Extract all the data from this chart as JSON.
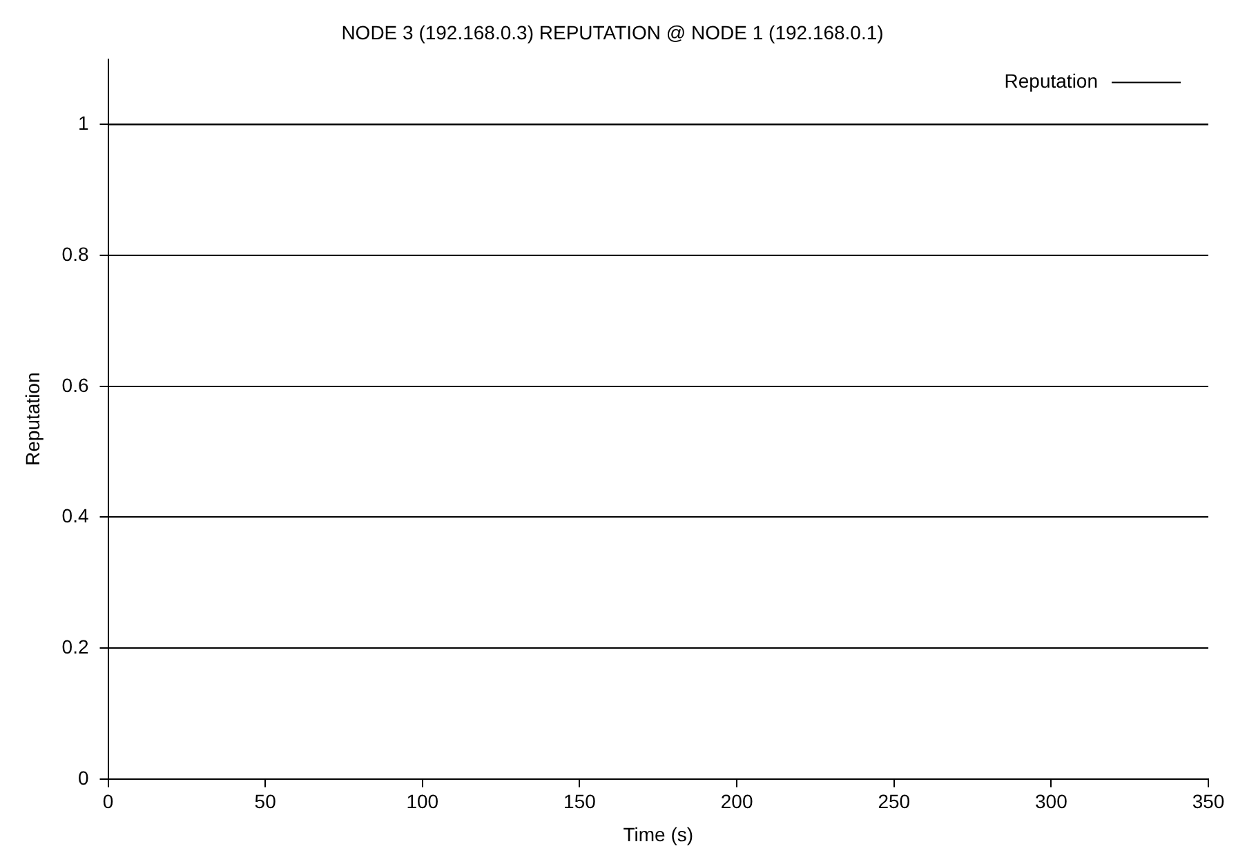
{
  "chart_data": {
    "type": "line",
    "title": "NODE 3 (192.168.0.3) REPUTATION @ NODE 1 (192.168.0.1)",
    "xlabel": "Time (s)",
    "ylabel": "Reputation",
    "x": [
      0,
      350
    ],
    "series": [
      {
        "name": "Reputation",
        "color": "#000000",
        "values": [
          1,
          1
        ]
      }
    ],
    "xlim": [
      0,
      350
    ],
    "xticks": [
      0,
      50,
      100,
      150,
      200,
      250,
      300,
      350
    ],
    "ylim": [
      0,
      1.1
    ],
    "yticks": [
      0,
      0.2,
      0.4,
      0.6,
      0.8,
      1
    ],
    "grid": "y",
    "legend": "top right",
    "marker": "none",
    "line_style": "solid"
  }
}
